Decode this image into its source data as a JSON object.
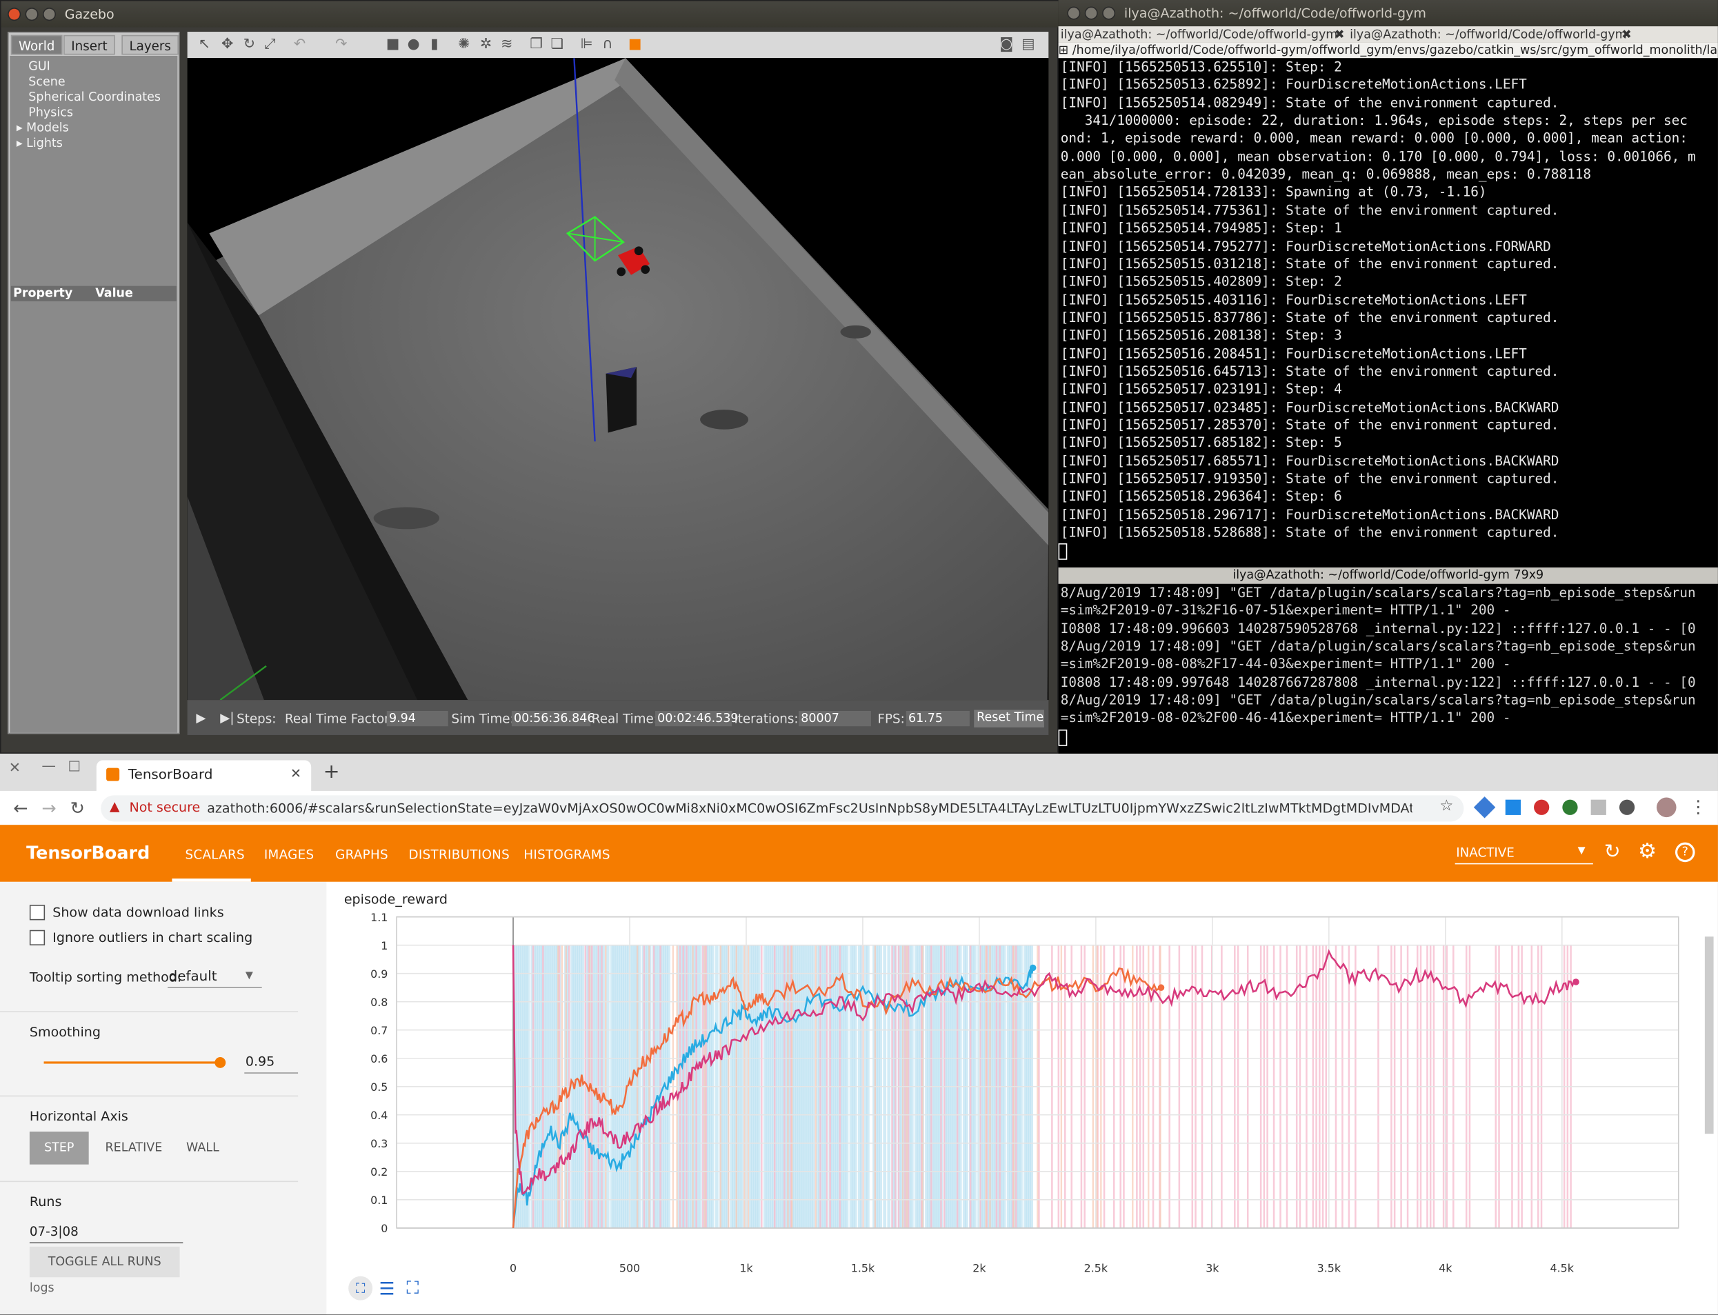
{
  "gazebo": {
    "title": "Gazebo",
    "tabs": [
      "World",
      "Insert",
      "Layers"
    ],
    "tree": [
      "GUI",
      "Scene",
      "Spherical Coordinates",
      "Physics",
      "Models",
      "Lights"
    ],
    "prop_headers": [
      "Property",
      "Value"
    ],
    "status": {
      "steps_label": "Steps:",
      "rtf_label": "Real Time Factor:",
      "rtf": "9.94",
      "sim_label": "Sim Time:",
      "sim": "00:56:36.846",
      "real_label": "Real Time:",
      "real": "00:02:46.539",
      "iter_label": "Iterations:",
      "iter": "80007",
      "fps_label": "FPS:",
      "fps": "61.75",
      "reset": "Reset Time"
    }
  },
  "terminal": {
    "title": "ilya@Azathoth: ~/offworld/Code/offworld-gym",
    "tabs": [
      "ilya@Azathoth: ~/offworld/Code/offworld-gym",
      "ilya@Azathoth: ~/offworld/Code/offworld-gym"
    ],
    "path": "/home/ilya/offworld/Code/offworld-gym/offworld_gym/envs/gazebo/catkin_ws/src/gym_offworld_monolith/lau",
    "lines": [
      "[INFO] [1565250513.625510]: Step: 2",
      "[INFO] [1565250513.625892]: FourDiscreteMotionActions.LEFT",
      "[INFO] [1565250514.082949]: State of the environment captured.",
      "   341/1000000: episode: 22, duration: 1.964s, episode steps: 2, steps per sec",
      "ond: 1, episode reward: 0.000, mean reward: 0.000 [0.000, 0.000], mean action:",
      "0.000 [0.000, 0.000], mean observation: 0.170 [0.000, 0.794], loss: 0.001066, m",
      "ean_absolute_error: 0.042039, mean_q: 0.069888, mean_eps: 0.788118",
      "[INFO] [1565250514.728133]: Spawning at (0.73, -1.16)",
      "[INFO] [1565250514.775361]: State of the environment captured.",
      "[INFO] [1565250514.794985]: Step: 1",
      "[INFO] [1565250514.795277]: FourDiscreteMotionActions.FORWARD",
      "[INFO] [1565250515.031218]: State of the environment captured.",
      "[INFO] [1565250515.402809]: Step: 2",
      "[INFO] [1565250515.403116]: FourDiscreteMotionActions.LEFT",
      "[INFO] [1565250515.837786]: State of the environment captured.",
      "[INFO] [1565250516.208138]: Step: 3",
      "[INFO] [1565250516.208451]: FourDiscreteMotionActions.LEFT",
      "[INFO] [1565250516.645713]: State of the environment captured.",
      "[INFO] [1565250517.023191]: Step: 4",
      "[INFO] [1565250517.023485]: FourDiscreteMotionActions.BACKWARD",
      "[INFO] [1565250517.285370]: State of the environment captured.",
      "[INFO] [1565250517.685182]: Step: 5",
      "[INFO] [1565250517.685571]: FourDiscreteMotionActions.BACKWARD",
      "[INFO] [1565250517.919350]: State of the environment captured.",
      "[INFO] [1565250518.296364]: Step: 6",
      "[INFO] [1565250518.296717]: FourDiscreteMotionActions.BACKWARD",
      "[INFO] [1565250518.528688]: State of the environment captured."
    ],
    "pane2_title": "ilya@Azathoth: ~/offworld/Code/offworld-gym 79x9",
    "lines2": [
      "8/Aug/2019 17:48:09] \"GET /data/plugin/scalars/scalars?tag=nb_episode_steps&run",
      "=sim%2F2019-07-31%2F16-07-51&experiment= HTTP/1.1\" 200 -",
      "I0808 17:48:09.996603 140287590528768 _internal.py:122] ::ffff:127.0.0.1 - - [0",
      "8/Aug/2019 17:48:09] \"GET /data/plugin/scalars/scalars?tag=nb_episode_steps&run",
      "=sim%2F2019-08-08%2F17-44-03&experiment= HTTP/1.1\" 200 -",
      "I0808 17:48:09.997648 140287667287808 _internal.py:122] ::ffff:127.0.0.1 - - [0",
      "8/Aug/2019 17:48:09] \"GET /data/plugin/scalars/scalars?tag=nb_episode_steps&run",
      "=sim%2F2019-08-02%2F00-46-41&experiment= HTTP/1.1\" 200 -"
    ]
  },
  "browser": {
    "tab_title": "TensorBoard",
    "not_secure": "Not secure",
    "url": "azathoth:6006/#scalars&runSelectionState=eyJzaW0vMjAxOS0wOC0wMi8xNi0xMC0wOSI6ZmFsc2UsInNpbS8yMDE5LTA4LTAyLzEwLTUzLTU0IjpmYWxzZSwic2ltLzIwMTktMDgtMDIvMDAtNDYtNDEiOnRydWUsInN..."
  },
  "tensorboard": {
    "brand": "TensorBoard",
    "nav": [
      "SCALARS",
      "IMAGES",
      "GRAPHS",
      "DISTRIBUTIONS",
      "HISTOGRAMS"
    ],
    "inactive": "INACTIVE",
    "show_links": "Show data download links",
    "ignore_outliers": "Ignore outliers in chart scaling",
    "tooltip_label": "Tooltip sorting method:",
    "tooltip_value": "default",
    "smoothing_label": "Smoothing",
    "smoothing_value": "0.95",
    "smoothing": 0.95,
    "haxis_label": "Horizontal Axis",
    "haxis": [
      "STEP",
      "RELATIVE",
      "WALL"
    ],
    "runs_label": "Runs",
    "runs_filter": "07-3|08",
    "toggle": "TOGGLE ALL RUNS",
    "logs": "logs",
    "colors": {
      "orange": "#f57c00",
      "blue": "#29abe2",
      "pink": "#d73a7d",
      "salmon": "#f26d3d"
    }
  },
  "chart_data": {
    "type": "line",
    "title": "episode_reward",
    "xlim": [
      -500,
      5000
    ],
    "ylim": [
      0,
      1.1
    ],
    "xticks": [
      0,
      500,
      1000,
      1500,
      2000,
      2500,
      3000,
      3500,
      4000,
      4500
    ],
    "xticklabels": [
      "0",
      "500",
      "1k",
      "1.5k",
      "2k",
      "2.5k",
      "3k",
      "3.5k",
      "4k",
      "4.5k"
    ],
    "yticks": [
      0,
      0.1,
      0.2,
      0.3,
      0.4,
      0.5,
      0.6,
      0.7,
      0.8,
      0.9,
      1,
      1.1
    ],
    "series": [
      {
        "color": "#29abe2",
        "x": [
          0,
          20,
          60,
          100,
          150,
          200,
          250,
          300,
          350,
          400,
          450,
          500,
          550,
          600,
          650,
          700,
          750,
          800,
          850,
          900,
          950,
          1000,
          1050,
          1100,
          1200,
          1300,
          1400,
          1500,
          1600,
          1700,
          1800,
          1900,
          2000,
          2100,
          2200,
          2230
        ],
        "y": [
          0,
          0.15,
          0.1,
          0.22,
          0.35,
          0.3,
          0.4,
          0.32,
          0.27,
          0.25,
          0.22,
          0.27,
          0.35,
          0.42,
          0.5,
          0.56,
          0.62,
          0.66,
          0.68,
          0.72,
          0.75,
          0.77,
          0.73,
          0.76,
          0.74,
          0.82,
          0.78,
          0.84,
          0.8,
          0.77,
          0.82,
          0.87,
          0.83,
          0.87,
          0.86,
          0.92
        ]
      },
      {
        "color": "#f26d3d",
        "x": [
          0,
          20,
          60,
          100,
          150,
          200,
          250,
          300,
          350,
          400,
          450,
          500,
          550,
          600,
          650,
          700,
          750,
          800,
          850,
          900,
          950,
          1000,
          1050,
          1100,
          1200,
          1300,
          1400,
          1500,
          1600,
          1700,
          1800,
          1900,
          2000,
          2100,
          2200,
          2300,
          2400,
          2500,
          2600,
          2700,
          2780
        ],
        "y": [
          0,
          0.2,
          0.33,
          0.38,
          0.41,
          0.45,
          0.5,
          0.52,
          0.48,
          0.46,
          0.4,
          0.52,
          0.58,
          0.62,
          0.67,
          0.72,
          0.76,
          0.82,
          0.8,
          0.84,
          0.87,
          0.78,
          0.82,
          0.8,
          0.86,
          0.82,
          0.88,
          0.8,
          0.78,
          0.86,
          0.84,
          0.87,
          0.82,
          0.88,
          0.84,
          0.86,
          0.87,
          0.85,
          0.9,
          0.86,
          0.85
        ]
      },
      {
        "color": "#d73a7d",
        "x": [
          0,
          10,
          40,
          100,
          150,
          200,
          250,
          300,
          350,
          400,
          450,
          500,
          550,
          600,
          650,
          700,
          750,
          800,
          850,
          900,
          1000,
          1100,
          1200,
          1300,
          1400,
          1500,
          1600,
          1700,
          1800,
          1900,
          2000,
          2100,
          2200,
          2300,
          2400,
          2500,
          2600,
          2700,
          2800,
          2900,
          3000,
          3100,
          3200,
          3300,
          3400,
          3500,
          3600,
          3700,
          3800,
          3900,
          4000,
          4100,
          4200,
          4300,
          4400,
          4500,
          4560
        ],
        "y": [
          1.0,
          0.35,
          0.12,
          0.2,
          0.18,
          0.24,
          0.27,
          0.34,
          0.38,
          0.35,
          0.3,
          0.33,
          0.36,
          0.4,
          0.45,
          0.48,
          0.52,
          0.58,
          0.6,
          0.62,
          0.68,
          0.72,
          0.75,
          0.77,
          0.8,
          0.76,
          0.82,
          0.78,
          0.85,
          0.82,
          0.86,
          0.84,
          0.82,
          0.88,
          0.84,
          0.87,
          0.82,
          0.84,
          0.8,
          0.86,
          0.82,
          0.84,
          0.86,
          0.83,
          0.85,
          0.96,
          0.88,
          0.9,
          0.85,
          0.9,
          0.86,
          0.8,
          0.86,
          0.82,
          0.8,
          0.86,
          0.87
        ]
      }
    ]
  }
}
